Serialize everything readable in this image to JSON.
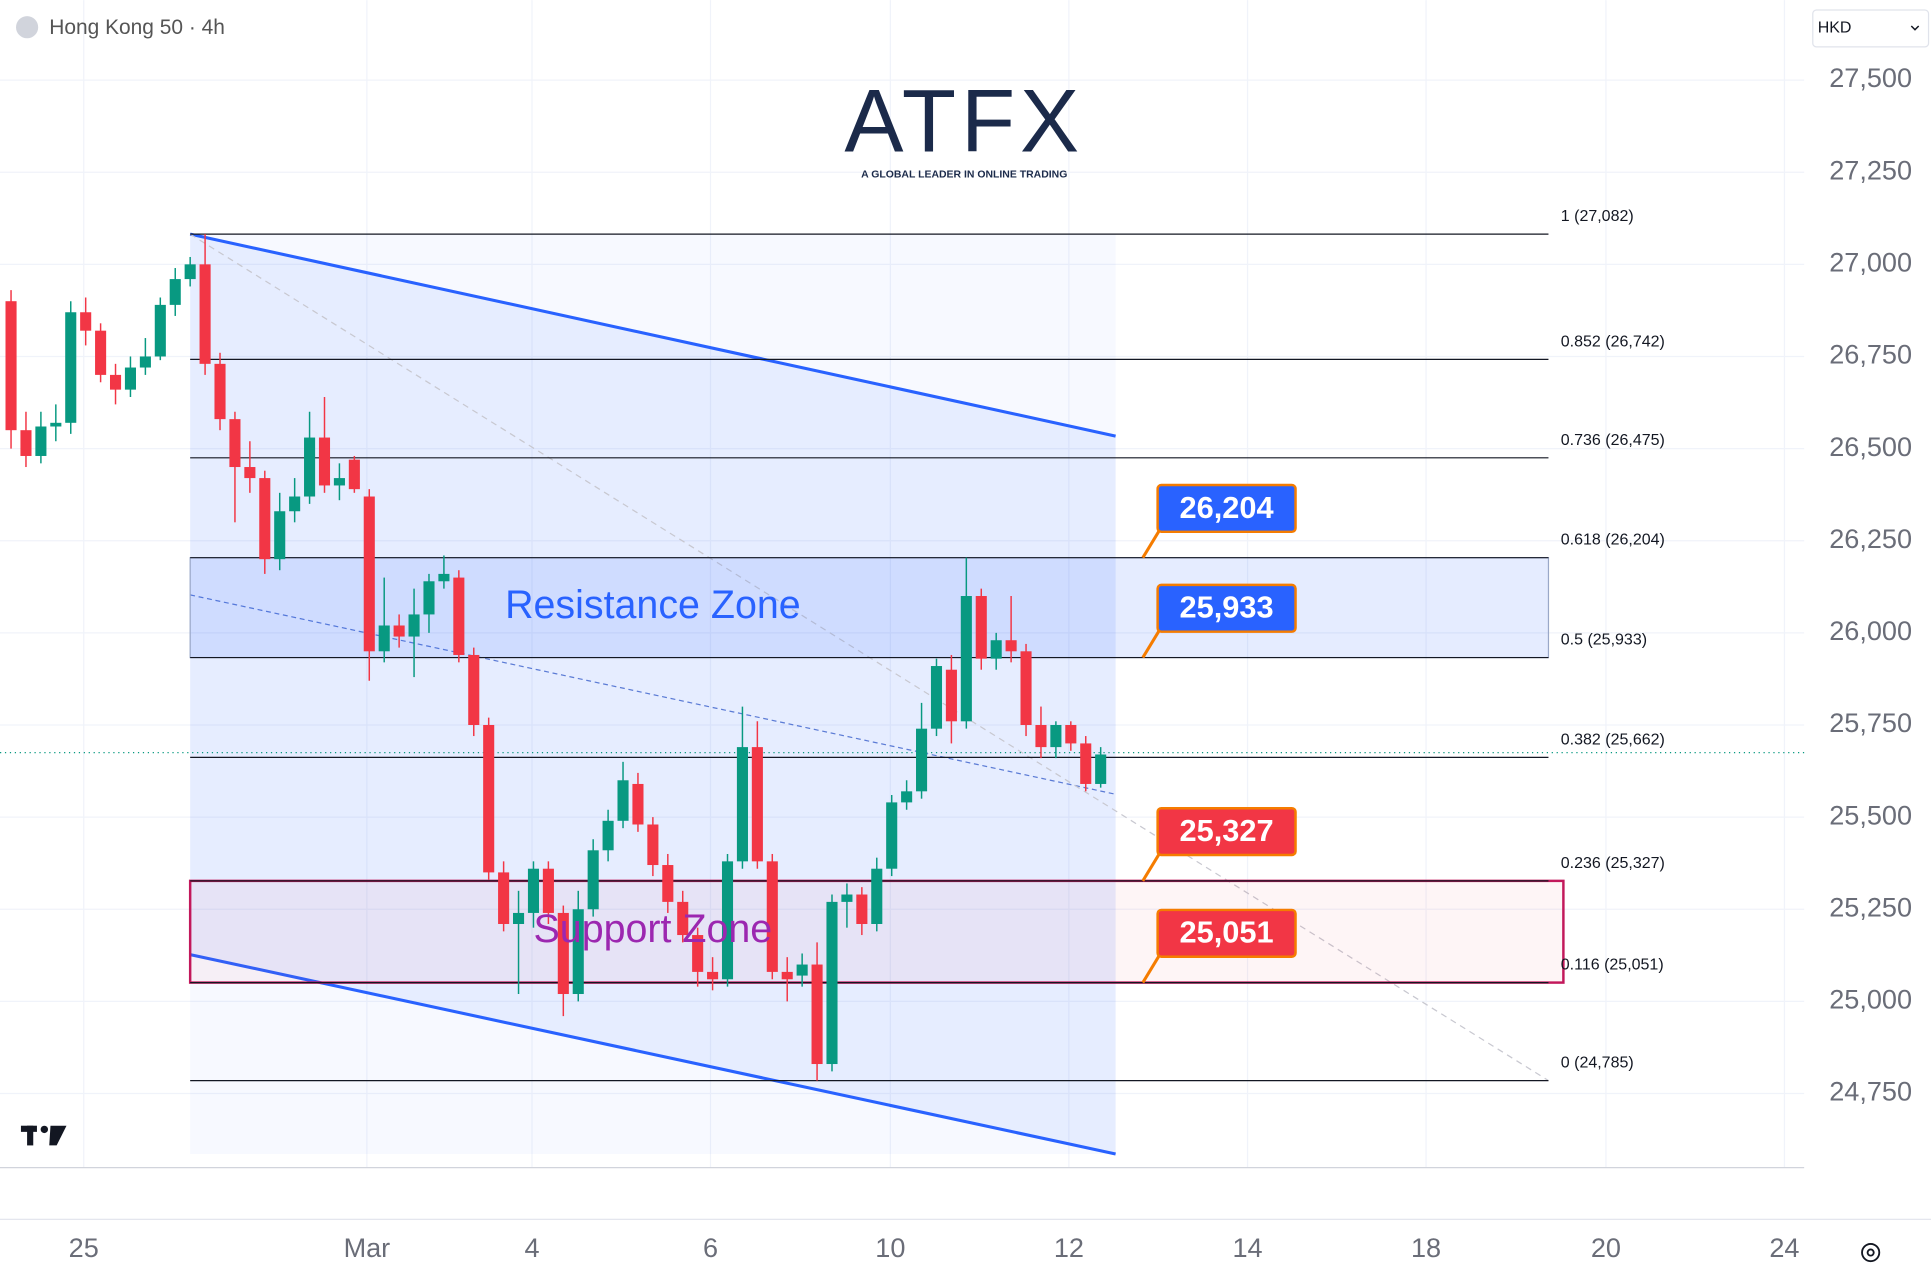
{
  "header": {
    "symbol": "Hong Kong 50 · 4h",
    "currency": "HKD"
  },
  "logo": {
    "name": "ATFX",
    "tagline": "A GLOBAL LEADER IN ONLINE TRADING"
  },
  "chart_data": {
    "type": "candlestick",
    "x": [
      0,
      1,
      2,
      3,
      4,
      5,
      6,
      7,
      8,
      9,
      10,
      11,
      12,
      13,
      14,
      15,
      16,
      17,
      18,
      19,
      20,
      21,
      22,
      23,
      24,
      25,
      26,
      27,
      28,
      29,
      30,
      31,
      32,
      33,
      34,
      35,
      36,
      37,
      38,
      39,
      40,
      41,
      42,
      43,
      44,
      45,
      46,
      47,
      48,
      49,
      50,
      51,
      52,
      53,
      54,
      55,
      56,
      57,
      58,
      59,
      60,
      61,
      62,
      63,
      64,
      65,
      66,
      67,
      68,
      69,
      70,
      71,
      72,
      73
    ],
    "open": [
      26900,
      26550,
      26480,
      26560,
      26570,
      26870,
      26820,
      26700,
      26660,
      26720,
      26750,
      26890,
      26960,
      27000,
      26730,
      26580,
      26450,
      26420,
      26200,
      26330,
      26370,
      26530,
      26400,
      26470,
      26370,
      25950,
      26020,
      25990,
      26050,
      26140,
      26150,
      25940,
      25750,
      25350,
      25210,
      25240,
      25360,
      25240,
      25020,
      25250,
      25410,
      25490,
      25590,
      25480,
      25370,
      25270,
      25180,
      25080,
      25060,
      25380,
      25690,
      25380,
      25080,
      25070,
      25100,
      24830,
      25270,
      25290,
      25210,
      25360,
      25540,
      25570,
      25740,
      25900,
      25760,
      26100,
      25930,
      25980,
      25950,
      25750,
      25690,
      25750,
      25700,
      25590
    ],
    "high": [
      26930,
      26600,
      26600,
      26620,
      26900,
      26910,
      26840,
      26730,
      26750,
      26800,
      26910,
      26990,
      27020,
      27082,
      26760,
      26600,
      26520,
      26440,
      26380,
      26420,
      26600,
      26640,
      26460,
      26480,
      26390,
      26150,
      26050,
      26120,
      26160,
      26210,
      26170,
      25960,
      25770,
      25380,
      25300,
      25380,
      25380,
      25260,
      25300,
      25440,
      25520,
      25650,
      25620,
      25500,
      25400,
      25300,
      25200,
      25120,
      25400,
      25800,
      25760,
      25400,
      25120,
      25130,
      25160,
      25290,
      25320,
      25310,
      25390,
      25560,
      25600,
      25810,
      25930,
      25940,
      26204,
      26120,
      26000,
      26100,
      25970,
      25800,
      25760,
      25760,
      25720,
      25690
    ],
    "low": [
      26500,
      26450,
      26460,
      26520,
      26540,
      26780,
      26680,
      26620,
      26640,
      26700,
      26740,
      26860,
      26940,
      26700,
      26550,
      26300,
      26380,
      26160,
      26170,
      26300,
      26350,
      26380,
      26360,
      26380,
      25870,
      25920,
      25960,
      25880,
      26000,
      26120,
      25920,
      25720,
      25330,
      25190,
      25020,
      25200,
      25210,
      24960,
      25000,
      25230,
      25380,
      25470,
      25460,
      25340,
      25240,
      25160,
      25040,
      25030,
      25040,
      25360,
      25360,
      25060,
      25000,
      25040,
      24785,
      24810,
      25200,
      25180,
      25190,
      25340,
      25520,
      25550,
      25720,
      25700,
      25740,
      25900,
      25900,
      25920,
      25720,
      25660,
      25660,
      25680,
      25570,
      25580
    ],
    "close": [
      26550,
      26480,
      26560,
      26570,
      26870,
      26820,
      26700,
      26660,
      26720,
      26750,
      26890,
      26960,
      27000,
      26730,
      26580,
      26450,
      26420,
      26200,
      26330,
      26370,
      26530,
      26400,
      26420,
      26390,
      25950,
      26020,
      25990,
      26050,
      26140,
      26160,
      25940,
      25750,
      25350,
      25210,
      25240,
      25360,
      25240,
      25020,
      25250,
      25410,
      25490,
      25600,
      25480,
      25370,
      25270,
      25180,
      25080,
      25060,
      25380,
      25690,
      25380,
      25080,
      25060,
      25100,
      24830,
      25270,
      25290,
      25210,
      25360,
      25540,
      25570,
      25740,
      25910,
      25760,
      26100,
      25930,
      25980,
      25950,
      25750,
      25690,
      25750,
      25700,
      25590,
      25670
    ],
    "up_color": "#089981",
    "down_color": "#f23645",
    "xlim": [
      -0.74,
      120.13
    ],
    "xticks": [
      {
        "value": 4.87,
        "label": "25"
      },
      {
        "value": 23.84,
        "label": "Mar"
      },
      {
        "value": 34.9,
        "label": "4"
      },
      {
        "value": 46.86,
        "label": "6"
      },
      {
        "value": 58.91,
        "label": "10"
      },
      {
        "value": 70.87,
        "label": "12"
      },
      {
        "value": 82.84,
        "label": "14"
      },
      {
        "value": 94.8,
        "label": "18"
      },
      {
        "value": 106.85,
        "label": "20"
      },
      {
        "value": 118.81,
        "label": "24"
      }
    ],
    "ylim": [
      24549,
      27717
    ],
    "yticks": [
      {
        "value": 24750,
        "label": "24,750"
      },
      {
        "value": 25000,
        "label": "25,000"
      },
      {
        "value": 25250,
        "label": "25,250"
      },
      {
        "value": 25500,
        "label": "25,500"
      },
      {
        "value": 25750,
        "label": "25,750"
      },
      {
        "value": 26000,
        "label": "26,000"
      },
      {
        "value": 26250,
        "label": "26,250"
      },
      {
        "value": 26500,
        "label": "26,500"
      },
      {
        "value": 26750,
        "label": "26,750"
      },
      {
        "value": 27000,
        "label": "27,000"
      },
      {
        "value": 27250,
        "label": "27,250"
      },
      {
        "value": 27500,
        "label": "27,500"
      }
    ],
    "grid": true,
    "last_price_line": 25675,
    "fib": {
      "x": [
        12,
        103
      ],
      "levels": [
        {
          "value": 27082,
          "label": "1 (27,082)"
        },
        {
          "value": 26742,
          "label": "0.852 (26,742)"
        },
        {
          "value": 26475,
          "label": "0.736 (26,475)"
        },
        {
          "value": 26204,
          "label": "0.618 (26,204)"
        },
        {
          "value": 25933,
          "label": "0.5 (25,933)"
        },
        {
          "value": 25662,
          "label": "0.382 (25,662)"
        },
        {
          "value": 25327,
          "label": "0.236 (25,327)"
        },
        {
          "value": 25051,
          "label": "0.116 (25,051)"
        },
        {
          "value": 24785,
          "label": "0 (24,785)"
        }
      ]
    },
    "fib_trend": {
      "x": [
        12,
        103
      ],
      "values": [
        27082,
        24785
      ]
    },
    "channel_upper": {
      "x": [
        12,
        74
      ],
      "values": [
        27082,
        26534
      ]
    },
    "channel_lower": {
      "x": [
        12,
        74
      ],
      "values": [
        25127,
        24586
      ]
    },
    "channel_mid": {
      "x": [
        12,
        74
      ],
      "values": [
        26103,
        25562
      ]
    },
    "zones": [
      {
        "label": "Resistance Zone",
        "low": 25933,
        "high": 26204,
        "x": [
          12,
          103
        ],
        "color": "#2962ff"
      },
      {
        "label": "Support Zone",
        "low": 25051,
        "high": 25327,
        "x": [
          12,
          104
        ],
        "color": "#9c27b0"
      }
    ],
    "callouts": [
      {
        "value": 26204,
        "label": "26,204",
        "color": "#2962ff"
      },
      {
        "value": 25933,
        "label": "25,933",
        "color": "#2962ff"
      },
      {
        "value": 25327,
        "label": "25,327",
        "color": "#f23645"
      },
      {
        "value": 25051,
        "label": "25,051",
        "color": "#f23645"
      }
    ]
  }
}
